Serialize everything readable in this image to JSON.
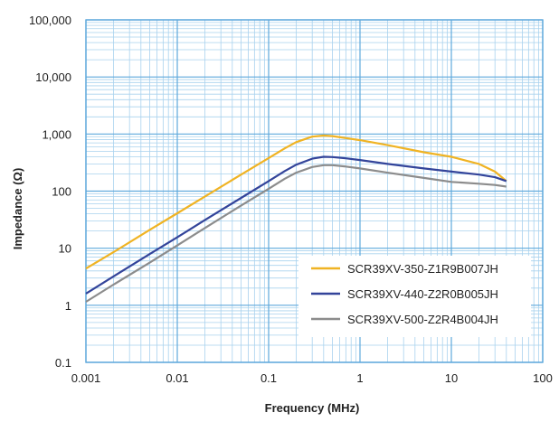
{
  "chart_data": {
    "type": "line",
    "xlabel": "Frequency (MHz)",
    "ylabel": "Impedance (Ω)",
    "x_scale": "log",
    "y_scale": "log",
    "xlim": [
      0.001,
      100
    ],
    "ylim": [
      0.1,
      100000
    ],
    "x_ticks": [
      0.001,
      0.01,
      0.1,
      1,
      10,
      100
    ],
    "x_tick_labels": [
      "0.001",
      "0.01",
      "0.1",
      "1",
      "10",
      "100"
    ],
    "y_ticks": [
      0.1,
      1,
      10,
      100,
      1000,
      10000,
      100000
    ],
    "y_tick_labels": [
      "0.1",
      "1",
      "10",
      "100",
      "1,000",
      "10,000",
      "100,000"
    ],
    "grid": true,
    "legend_position": "bottom-right",
    "series": [
      {
        "name": "SCR39XV-350-Z1R9B007JH",
        "color": "#f0b323",
        "x": [
          0.001,
          0.002,
          0.005,
          0.01,
          0.02,
          0.05,
          0.1,
          0.15,
          0.2,
          0.3,
          0.4,
          0.5,
          0.7,
          1,
          2,
          5,
          10,
          20,
          30,
          40
        ],
        "y": [
          4.4,
          8.5,
          21,
          41,
          80,
          195,
          380,
          560,
          720,
          900,
          940,
          920,
          850,
          780,
          640,
          480,
          400,
          300,
          220,
          150
        ]
      },
      {
        "name": "SCR39XV-440-Z2R0B005JH",
        "color": "#33449a",
        "x": [
          0.001,
          0.002,
          0.005,
          0.01,
          0.02,
          0.05,
          0.1,
          0.15,
          0.2,
          0.3,
          0.4,
          0.5,
          0.7,
          1,
          2,
          5,
          10,
          20,
          30,
          40
        ],
        "y": [
          1.6,
          3.2,
          7.9,
          15.5,
          31,
          76,
          150,
          225,
          290,
          370,
          400,
          395,
          375,
          350,
          300,
          250,
          220,
          195,
          175,
          150
        ]
      },
      {
        "name": "SCR39XV-500-Z2R4B004JH",
        "color": "#8c8c8c",
        "x": [
          0.001,
          0.002,
          0.005,
          0.01,
          0.02,
          0.05,
          0.1,
          0.15,
          0.2,
          0.3,
          0.4,
          0.5,
          0.7,
          1,
          2,
          5,
          10,
          20,
          30,
          40
        ],
        "y": [
          1.15,
          2.3,
          5.6,
          11.2,
          22.5,
          56,
          110,
          165,
          210,
          265,
          285,
          285,
          270,
          250,
          210,
          170,
          145,
          135,
          128,
          120
        ]
      }
    ]
  }
}
